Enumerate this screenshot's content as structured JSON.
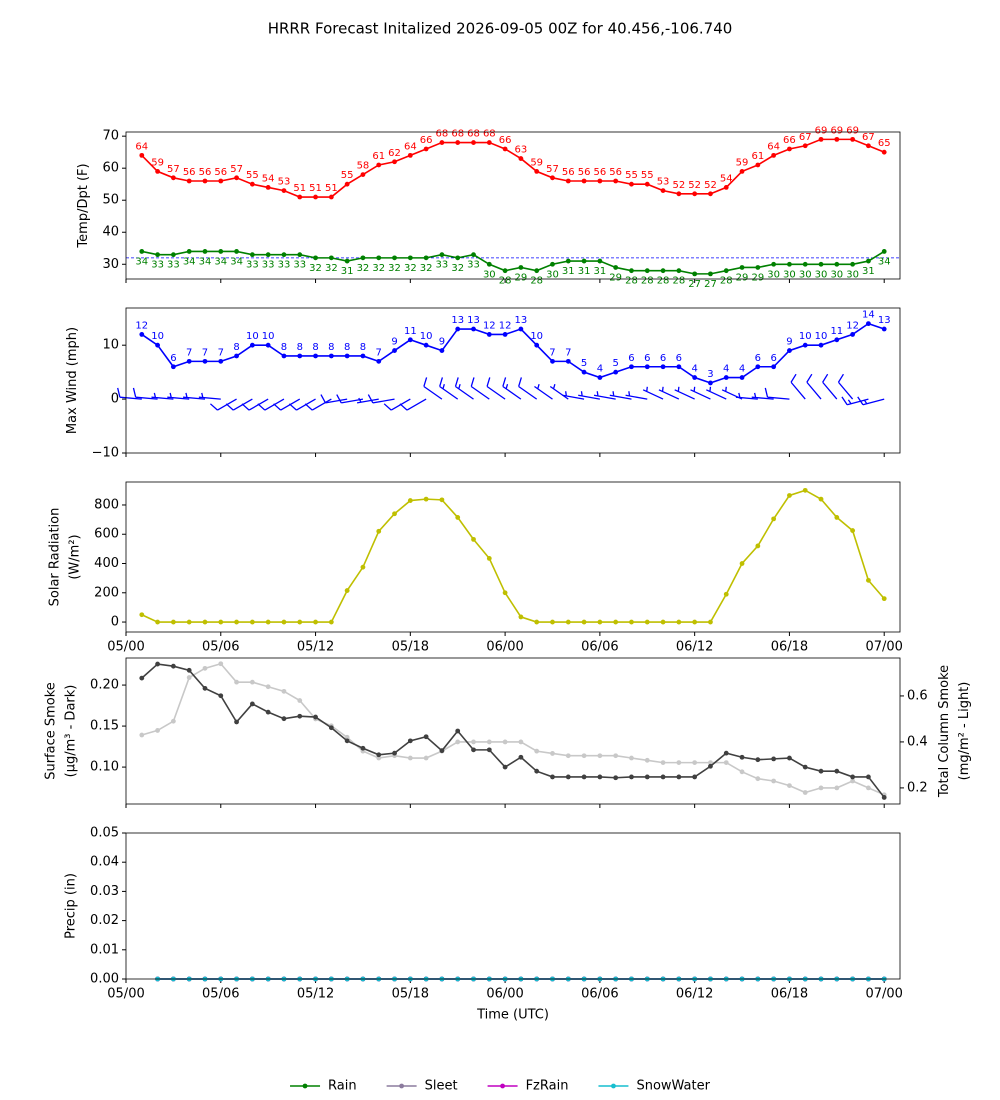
{
  "chart_data": [
    {
      "type": "line",
      "title": "HRRR Forecast Initalized 2026-09-05 00Z for 40.456,-106.740",
      "ylabel": [
        "Temp/Dpt (F)"
      ],
      "x": [
        1,
        2,
        3,
        4,
        5,
        6,
        7,
        8,
        9,
        10,
        11,
        12,
        13,
        14,
        15,
        16,
        17,
        18,
        19,
        20,
        21,
        22,
        23,
        24,
        25,
        26,
        27,
        28,
        29,
        30,
        31,
        32,
        33,
        34,
        35,
        36,
        37,
        38,
        39,
        40,
        41,
        42,
        43,
        44,
        45,
        46,
        47,
        48
      ],
      "xlim": [
        0,
        49
      ],
      "xticks": [
        0,
        6,
        12,
        18,
        24,
        30,
        36,
        42,
        48
      ],
      "ylim": [
        25.4,
        71.3
      ],
      "yticks": [
        30,
        40,
        50,
        60,
        70
      ],
      "hline": 32,
      "hline_color": "#0000ff",
      "series": [
        {
          "color": "#ff0000",
          "data_labels": "above",
          "values": [
            64,
            59,
            57,
            56,
            56,
            56,
            57,
            55,
            54,
            53,
            51,
            51,
            51,
            55,
            58,
            61,
            62,
            64,
            66,
            68,
            68,
            68,
            68,
            66,
            63,
            59,
            57,
            56,
            56,
            56,
            56,
            55,
            55,
            53,
            52,
            52,
            52,
            54,
            59,
            61,
            64,
            66,
            67,
            69,
            69,
            69,
            67,
            65
          ]
        },
        {
          "color": "#008000",
          "data_labels": "below",
          "values": [
            34,
            33,
            33,
            34,
            34,
            34,
            34,
            33,
            33,
            33,
            33,
            32,
            32,
            31,
            32,
            32,
            32,
            32,
            32,
            33,
            32,
            33,
            30,
            28,
            29,
            28,
            30,
            31,
            31,
            31,
            29,
            28,
            28,
            28,
            28,
            27,
            27,
            28,
            29,
            29,
            30,
            30,
            30,
            30,
            30,
            30,
            31,
            34
          ]
        }
      ]
    },
    {
      "type": "line",
      "ylabel": [
        "Max Wind (mph)"
      ],
      "x": [
        1,
        2,
        3,
        4,
        5,
        6,
        7,
        8,
        9,
        10,
        11,
        12,
        13,
        14,
        15,
        16,
        17,
        18,
        19,
        20,
        21,
        22,
        23,
        24,
        25,
        26,
        27,
        28,
        29,
        30,
        31,
        32,
        33,
        34,
        35,
        36,
        37,
        38,
        39,
        40,
        41,
        42,
        43,
        44,
        45,
        46,
        47,
        48
      ],
      "xlim": [
        0,
        49
      ],
      "xticks": [
        0,
        6,
        12,
        18,
        24,
        30,
        36,
        42,
        48
      ],
      "ylim": [
        -10,
        16.9
      ],
      "yticks": [
        {
          "value": -10,
          "label": "−10"
        },
        0,
        10
      ],
      "barb_color": "#0000ff",
      "barb_direction": [
        275,
        275,
        275,
        275,
        275,
        275,
        240,
        240,
        240,
        240,
        240,
        240,
        240,
        260,
        260,
        260,
        260,
        240,
        240,
        305,
        305,
        305,
        305,
        305,
        305,
        305,
        305,
        305,
        280,
        280,
        280,
        280,
        280,
        295,
        295,
        295,
        295,
        295,
        295,
        275,
        275,
        275,
        320,
        320,
        320,
        320,
        255,
        255
      ],
      "series": [
        {
          "color": "#0000ff",
          "data_labels": "above",
          "values": [
            12,
            10,
            6,
            7,
            7,
            7,
            8,
            10,
            10,
            8,
            8,
            8,
            8,
            8,
            8,
            7,
            9,
            11,
            10,
            9,
            13,
            13,
            12,
            12,
            13,
            10,
            7,
            7,
            5,
            4,
            5,
            6,
            6,
            6,
            6,
            4,
            3,
            4,
            4,
            6,
            6,
            9,
            10,
            10,
            11,
            12,
            14,
            13
          ]
        }
      ]
    },
    {
      "type": "line",
      "ylabel": [
        "Solar Radiation",
        "(W/m²)"
      ],
      "x": [
        1,
        2,
        3,
        4,
        5,
        6,
        7,
        8,
        9,
        10,
        11,
        12,
        13,
        14,
        15,
        16,
        17,
        18,
        19,
        20,
        21,
        22,
        23,
        24,
        25,
        26,
        27,
        28,
        29,
        30,
        31,
        32,
        33,
        34,
        35,
        36,
        37,
        38,
        39,
        40,
        41,
        42,
        43,
        44,
        45,
        46,
        47,
        48
      ],
      "xlim": [
        0,
        49
      ],
      "xticks": [
        {
          "value": 0,
          "label": "05/00"
        },
        {
          "value": 6,
          "label": "05/06"
        },
        {
          "value": 12,
          "label": "05/12"
        },
        {
          "value": 18,
          "label": "05/18"
        },
        {
          "value": 24,
          "label": "06/00"
        },
        {
          "value": 30,
          "label": "06/06"
        },
        {
          "value": 36,
          "label": "06/12"
        },
        {
          "value": 42,
          "label": "06/18"
        },
        {
          "value": 48,
          "label": "07/00"
        }
      ],
      "ylim": [
        -68,
        957
      ],
      "yticks": [
        0,
        200,
        400,
        600,
        800
      ],
      "series": [
        {
          "color": "#bfbf00",
          "values": [
            50,
            0,
            0,
            0,
            0,
            0,
            0,
            0,
            0,
            0,
            0,
            0,
            0,
            215,
            375,
            620,
            740,
            830,
            840,
            835,
            715,
            565,
            435,
            200,
            35,
            0,
            0,
            0,
            0,
            0,
            0,
            0,
            0,
            0,
            0,
            0,
            0,
            190,
            400,
            520,
            705,
            865,
            900,
            840,
            715,
            625,
            285,
            160
          ]
        }
      ]
    },
    {
      "type": "line",
      "ylabel": [
        "Surface Smoke",
        "(μg/m³ - Dark)"
      ],
      "y2label": [
        "Total Column Smoke",
        "(mg/m² - Light)"
      ],
      "x": [
        1,
        2,
        3,
        4,
        5,
        6,
        7,
        8,
        9,
        10,
        11,
        12,
        13,
        14,
        15,
        16,
        17,
        18,
        19,
        20,
        21,
        22,
        23,
        24,
        25,
        26,
        27,
        28,
        29,
        30,
        31,
        32,
        33,
        34,
        35,
        36,
        37,
        38,
        39,
        40,
        41,
        42,
        43,
        44,
        45,
        46,
        47,
        48
      ],
      "xlim": [
        0,
        49
      ],
      "xticks": [
        0,
        6,
        12,
        18,
        24,
        30,
        36,
        42,
        48
      ],
      "ylim": [
        0.055,
        0.233
      ],
      "yticks": [
        {
          "value": 0.1,
          "label": "0.10"
        },
        {
          "value": 0.15,
          "label": "0.15"
        },
        {
          "value": 0.2,
          "label": "0.20"
        }
      ],
      "y2lim": [
        0.13,
        0.765
      ],
      "y2ticks": [
        0.2,
        0.4,
        0.6
      ],
      "series": [
        {
          "color": "#c8c8c8",
          "axis": "y2",
          "values": [
            0.43,
            0.45,
            0.49,
            0.68,
            0.72,
            0.74,
            0.66,
            0.66,
            0.64,
            0.62,
            0.58,
            0.5,
            0.47,
            0.42,
            0.36,
            0.33,
            0.34,
            0.33,
            0.33,
            0.36,
            0.4,
            0.4,
            0.4,
            0.4,
            0.4,
            0.36,
            0.35,
            0.34,
            0.34,
            0.34,
            0.34,
            0.33,
            0.32,
            0.31,
            0.31,
            0.31,
            0.31,
            0.31,
            0.27,
            0.24,
            0.23,
            0.21,
            0.18,
            0.2,
            0.2,
            0.23,
            0.2,
            0.17
          ]
        },
        {
          "color": "#404040",
          "values": [
            0.2085,
            0.2256,
            0.223,
            0.218,
            0.196,
            0.187,
            0.155,
            0.177,
            0.167,
            0.159,
            0.162,
            0.161,
            0.148,
            0.132,
            0.123,
            0.115,
            0.117,
            0.132,
            0.137,
            0.12,
            0.144,
            0.121,
            0.121,
            0.1,
            0.112,
            0.095,
            0.088,
            0.088,
            0.088,
            0.088,
            0.087,
            0.088,
            0.088,
            0.088,
            0.088,
            0.088,
            0.101,
            0.117,
            0.112,
            0.109,
            0.11,
            0.111,
            0.1,
            0.095,
            0.095,
            0.088,
            0.088,
            0.063
          ]
        }
      ]
    },
    {
      "type": "line",
      "ylabel": [
        "Precip (in)"
      ],
      "xlabel": "Time (UTC)",
      "x": [
        2,
        3,
        4,
        5,
        6,
        7,
        8,
        9,
        10,
        11,
        12,
        13,
        14,
        15,
        16,
        17,
        18,
        19,
        20,
        21,
        22,
        23,
        24,
        25,
        26,
        27,
        28,
        29,
        30,
        31,
        32,
        33,
        34,
        35,
        36,
        37,
        38,
        39,
        40,
        41,
        42,
        43,
        44,
        45,
        46,
        47,
        48
      ],
      "xlim": [
        0,
        49
      ],
      "xticks": [
        {
          "value": 0,
          "label": "05/00"
        },
        {
          "value": 6,
          "label": "05/06"
        },
        {
          "value": 12,
          "label": "05/12"
        },
        {
          "value": 18,
          "label": "05/18"
        },
        {
          "value": 24,
          "label": "06/00"
        },
        {
          "value": 30,
          "label": "06/06"
        },
        {
          "value": 36,
          "label": "06/12"
        },
        {
          "value": 42,
          "label": "06/18"
        },
        {
          "value": 48,
          "label": "07/00"
        }
      ],
      "ylim": [
        0,
        0.05
      ],
      "yticks": [
        {
          "value": 0,
          "label": "0.00"
        },
        {
          "value": 0.01,
          "label": "0.01"
        },
        {
          "value": 0.02,
          "label": "0.02"
        },
        {
          "value": 0.03,
          "label": "0.03"
        },
        {
          "value": 0.04,
          "label": "0.04"
        },
        {
          "value": 0.05,
          "label": "0.05"
        }
      ],
      "legend": "lower center",
      "series": [
        {
          "name": "Rain",
          "color": "#008000",
          "values": [
            0,
            0,
            0,
            0,
            0,
            0,
            0,
            0,
            0,
            0,
            0,
            0,
            0,
            0,
            0,
            0,
            0,
            0,
            0,
            0,
            0,
            0,
            0,
            0,
            0,
            0,
            0,
            0,
            0,
            0,
            0,
            0,
            0,
            0,
            0,
            0,
            0,
            0,
            0,
            0,
            0,
            0,
            0,
            0,
            0,
            0,
            0
          ]
        },
        {
          "name": "Sleet",
          "color": "#8c7b9e",
          "values": [
            0,
            0,
            0,
            0,
            0,
            0,
            0,
            0,
            0,
            0,
            0,
            0,
            0,
            0,
            0,
            0,
            0,
            0,
            0,
            0,
            0,
            0,
            0,
            0,
            0,
            0,
            0,
            0,
            0,
            0,
            0,
            0,
            0,
            0,
            0,
            0,
            0,
            0,
            0,
            0,
            0,
            0,
            0,
            0,
            0,
            0,
            0
          ]
        },
        {
          "name": "FzRain",
          "color": "#c000c0",
          "values": [
            0,
            0,
            0,
            0,
            0,
            0,
            0,
            0,
            0,
            0,
            0,
            0,
            0,
            0,
            0,
            0,
            0,
            0,
            0,
            0,
            0,
            0,
            0,
            0,
            0,
            0,
            0,
            0,
            0,
            0,
            0,
            0,
            0,
            0,
            0,
            0,
            0,
            0,
            0,
            0,
            0,
            0,
            0,
            0,
            0,
            0,
            0
          ]
        },
        {
          "name": "SnowWater",
          "color": "#17becf",
          "values": [
            0,
            0,
            0,
            0,
            0,
            0,
            0,
            0,
            0,
            0,
            0,
            0,
            0,
            0,
            0,
            0,
            0,
            0,
            0,
            0,
            0,
            0,
            0,
            0,
            0,
            0,
            0,
            0,
            0,
            0,
            0,
            0,
            0,
            0,
            0,
            0,
            0,
            0,
            0,
            0,
            0,
            0,
            0,
            0,
            0,
            0,
            0
          ]
        }
      ]
    }
  ]
}
